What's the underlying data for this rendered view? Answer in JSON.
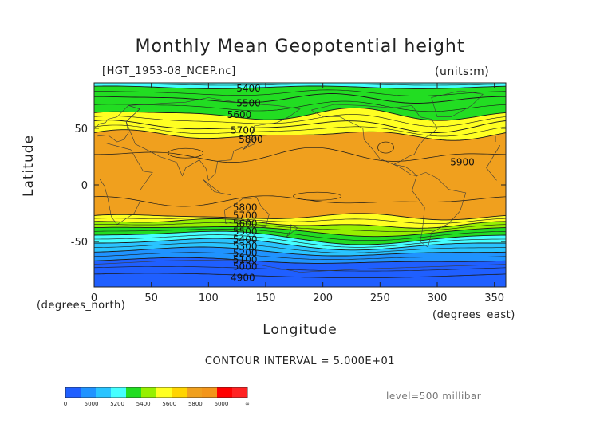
{
  "chart_data": {
    "type": "heatmap",
    "title": "Monthly Mean Geopotential height",
    "dataset_label": "[HGT_1953-08_NCEP.nc]",
    "units": "(units:m)",
    "xlabel": "Longitude",
    "ylabel": "Latitude",
    "x_unit": "(degrees_east)",
    "y_unit": "(degrees_north)",
    "xlim": [
      0,
      360
    ],
    "ylim": [
      -90,
      90
    ],
    "xticks": [
      0,
      50,
      100,
      150,
      200,
      250,
      300,
      350
    ],
    "yticks": [
      -50,
      0,
      50
    ],
    "contour_interval_text": "CONTOUR INTERVAL = 5.000E+01",
    "level_text": "level=500 millibar",
    "contour_labels": [
      {
        "value": "5400",
        "lon": 135,
        "lat": 85
      },
      {
        "value": "5500",
        "lon": 135,
        "lat": 72
      },
      {
        "value": "5600",
        "lon": 127,
        "lat": 62
      },
      {
        "value": "5700",
        "lon": 130,
        "lat": 48
      },
      {
        "value": "5800",
        "lon": 137,
        "lat": 40
      },
      {
        "value": "5900",
        "lon": 322,
        "lat": 20
      },
      {
        "value": "5800",
        "lon": 132,
        "lat": -20
      },
      {
        "value": "5700",
        "lon": 132,
        "lat": -27
      },
      {
        "value": "5600",
        "lon": 132,
        "lat": -34
      },
      {
        "value": "5500",
        "lon": 132,
        "lat": -41
      },
      {
        "value": "5400",
        "lon": 132,
        "lat": -48
      },
      {
        "value": "5300",
        "lon": 132,
        "lat": -54
      },
      {
        "value": "5200",
        "lon": 132,
        "lat": -60
      },
      {
        "value": "5100",
        "lon": 132,
        "lat": -66
      },
      {
        "value": "5000",
        "lon": 132,
        "lat": -72
      },
      {
        "value": "4900",
        "lon": 130,
        "lat": -82
      }
    ],
    "colorbar": {
      "ticks": [
        "0",
        "5000",
        "5200",
        "5400",
        "5600",
        "5800",
        "6000",
        "∞"
      ],
      "colors": [
        "#1f5fff",
        "#1f93ff",
        "#29c4ff",
        "#45ffff",
        "#22dd22",
        "#96f000",
        "#ffff22",
        "#ffd400",
        "#f0a01e",
        "#f3951a",
        "#ff0000",
        "#ff2222"
      ]
    },
    "bands": [
      {
        "range": [
          5900,
          6000
        ],
        "color": "#f0a01e"
      },
      {
        "range": [
          5700,
          5900
        ],
        "color": "#ffff22"
      },
      {
        "range": [
          5600,
          5700
        ],
        "color": "#96f000"
      },
      {
        "range": [
          5500,
          5600
        ],
        "color": "#22dd22"
      },
      {
        "range": [
          5400,
          5500
        ],
        "color": "#45ffff"
      },
      {
        "range": [
          5200,
          5400
        ],
        "color": "#29c4ff"
      },
      {
        "range": [
          5000,
          5200
        ],
        "color": "#1f93ff"
      },
      {
        "range": [
          0,
          5000
        ],
        "color": "#1f5fff"
      }
    ]
  }
}
